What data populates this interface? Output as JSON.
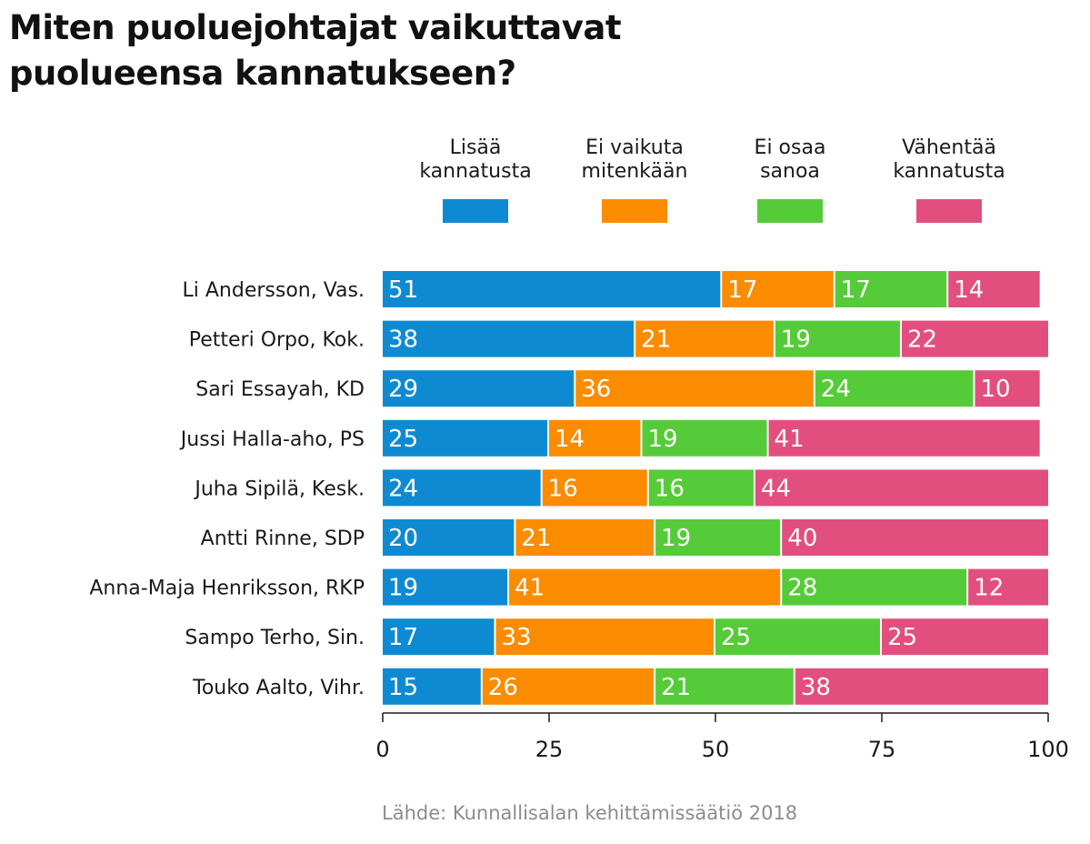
{
  "title": "Miten puoluejohtajat vaikuttavat puolueensa kannatukseen?",
  "source": "Lähde: Kunnallisalan kehittämissäätiö 2018",
  "chart_data": {
    "type": "bar",
    "orientation": "horizontal",
    "stacked": true,
    "title": "Miten puoluejohtajat vaikuttavat puolueensa kannatukseen?",
    "xlabel": "",
    "ylabel": "",
    "xlim": [
      0,
      100
    ],
    "xticks": [
      0,
      25,
      50,
      75,
      100
    ],
    "xtick_labels": [
      "0",
      "25",
      "50",
      "75",
      "100"
    ],
    "legend_position": "top",
    "categories": [
      "Li Andersson, Vas.",
      "Petteri Orpo, Kok.",
      "Sari Essayah, KD",
      "Jussi Halla-aho, PS",
      "Juha Sipilä, Kesk.",
      "Antti Rinne, SDP",
      "Anna-Maja Henriksson, RKP",
      "Sampo Terho, Sin.",
      "Touko Aalto, Vihr."
    ],
    "series": [
      {
        "name": "Lisää kannatusta",
        "legend_lines": [
          "Lisää",
          "kannatusta"
        ],
        "color": "#0e8ad3",
        "values": [
          51,
          38,
          29,
          25,
          24,
          20,
          19,
          17,
          15
        ]
      },
      {
        "name": "Ei vaikuta mitenkään",
        "legend_lines": [
          "Ei vaikuta",
          "mitenkään"
        ],
        "color": "#fb8c00",
        "values": [
          17,
          21,
          36,
          14,
          16,
          21,
          41,
          33,
          26
        ]
      },
      {
        "name": "Ei osaa sanoa",
        "legend_lines": [
          "Ei osaa",
          "sanoa"
        ],
        "color": "#56cb39",
        "values": [
          17,
          19,
          24,
          19,
          16,
          19,
          28,
          25,
          21
        ]
      },
      {
        "name": "Vähentää kannatusta",
        "legend_lines": [
          "Vähentää",
          "kannatusta"
        ],
        "color": "#e24f7e",
        "values": [
          14,
          22,
          10,
          41,
          44,
          40,
          12,
          25,
          38
        ]
      }
    ]
  }
}
